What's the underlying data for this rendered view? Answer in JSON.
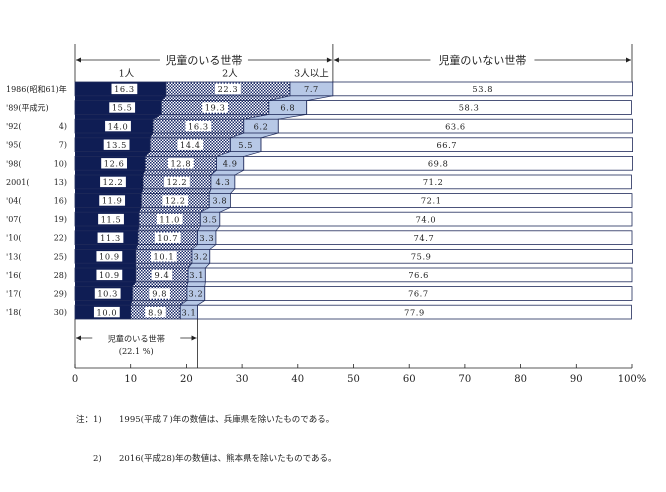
{
  "header": {
    "group_with_children": "児童のいる世帯",
    "group_without_children": "児童のいない世帯",
    "seg_1": "1人",
    "seg_2": "2人",
    "seg_3": "3人以上"
  },
  "summary_box": {
    "line1": "児童のいる世帯",
    "line2": "(22.1 %)"
  },
  "notes": {
    "prefix": "注：",
    "items": [
      {
        "num": "1)",
        "text": "1995(平成７)年の数値は、兵庫県を除いたものである。"
      },
      {
        "num": "2)",
        "text": "2016(平成28)年の数値は、熊本県を除いたものである。"
      }
    ]
  },
  "colors": {
    "one": "#0f1d54",
    "two": "#1a2a6a",
    "three": "#b7c8e6",
    "none": "#ffffff",
    "line": "#1f2a5a"
  },
  "chart_data": {
    "type": "bar",
    "orientation": "horizontal",
    "stacked": true,
    "xlim": [
      0,
      100
    ],
    "x_ticks": [
      "0",
      "10",
      "20",
      "30",
      "40",
      "50",
      "60",
      "70",
      "80",
      "90",
      "100%"
    ],
    "categories": [
      {
        "left": "1986(昭和61)年",
        "right": ""
      },
      {
        "left": "'89(平成元)",
        "right": ""
      },
      {
        "left": "'92(",
        "right": "4)"
      },
      {
        "left": "'95(",
        "right": "7)"
      },
      {
        "left": "'98(",
        "right": "10)"
      },
      {
        "left": "2001(",
        "right": "13)"
      },
      {
        "left": "'04(",
        "right": "16)"
      },
      {
        "left": "'07(",
        "right": "19)"
      },
      {
        "left": "'10(",
        "right": "22)"
      },
      {
        "left": "'13(",
        "right": "25)"
      },
      {
        "left": "'16(",
        "right": "28)"
      },
      {
        "left": "'17(",
        "right": "29)"
      },
      {
        "left": "'18(",
        "right": "30)"
      }
    ],
    "series": [
      {
        "name": "1人",
        "values": [
          16.3,
          15.5,
          14.0,
          13.5,
          12.6,
          12.2,
          11.9,
          11.5,
          11.3,
          10.9,
          10.9,
          10.3,
          10.0
        ],
        "labels": [
          "16.3",
          "15.5",
          "14.0",
          "13.5",
          "12.6",
          "12.2",
          "11.9",
          "11.5",
          "11.3",
          "10.9",
          "10.9",
          "10.3",
          "10.0"
        ]
      },
      {
        "name": "2人",
        "values": [
          22.3,
          19.3,
          16.3,
          14.4,
          12.8,
          12.2,
          12.2,
          11.0,
          10.7,
          10.1,
          9.4,
          9.8,
          8.9
        ],
        "labels": [
          "22.3",
          "19.3",
          "16.3",
          "14.4",
          "12.8",
          "12.2",
          "12.2",
          "11.0",
          "10.7",
          "10.1",
          "9.4",
          "9.8",
          "8.9"
        ]
      },
      {
        "name": "3人以上",
        "values": [
          7.7,
          6.8,
          6.2,
          5.5,
          4.9,
          4.3,
          3.8,
          3.5,
          3.3,
          3.2,
          3.1,
          3.2,
          3.1
        ],
        "labels": [
          "7.7",
          "6.8",
          "6.2",
          "5.5",
          "4.9",
          "4.3",
          "3.8",
          "3.5",
          "3.3",
          "3.2",
          "3.1",
          "3.2",
          "3.1"
        ]
      },
      {
        "name": "児童のいない世帯",
        "values": [
          53.8,
          58.3,
          63.6,
          66.7,
          69.8,
          71.2,
          72.1,
          74.0,
          74.7,
          75.9,
          76.6,
          76.7,
          77.9
        ],
        "labels": [
          "53.8",
          "58.3",
          "63.6",
          "66.7",
          "69.8",
          "71.2",
          "72.1",
          "74.0",
          "74.7",
          "75.9",
          "76.6",
          "76.7",
          "77.9"
        ]
      }
    ]
  }
}
